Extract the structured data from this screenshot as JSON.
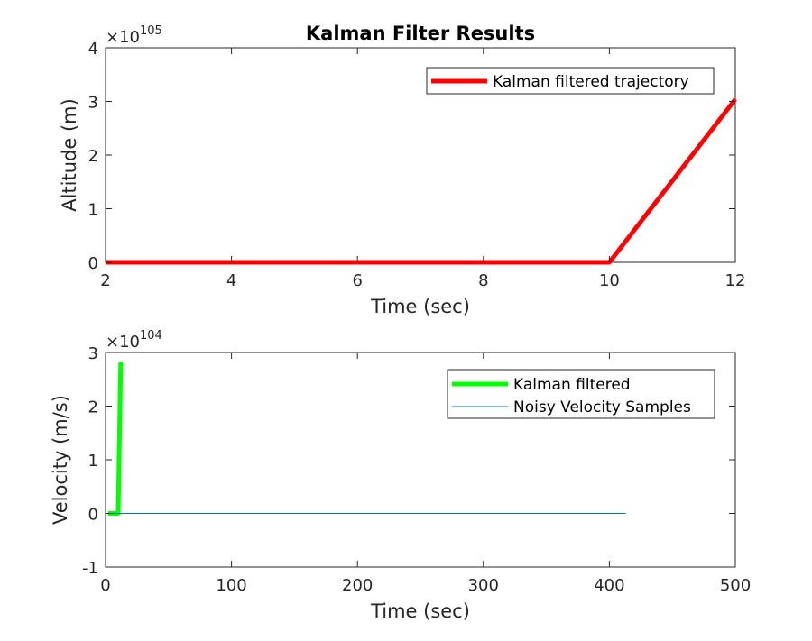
{
  "chart_data": [
    {
      "type": "line",
      "title": "Kalman Filter Results",
      "xlabel": "Time (sec)",
      "ylabel": "Altitude (m)",
      "xlim": [
        2,
        12
      ],
      "ylim": [
        0,
        4
      ],
      "xticks": [
        "2",
        "4",
        "6",
        "8",
        "10",
        "12"
      ],
      "yticks": [
        "0",
        "1",
        "2",
        "3",
        "4"
      ],
      "y_multiplier": {
        "base": "×10",
        "exponent": "105"
      },
      "grid": false,
      "legend_position": "top-right",
      "series": [
        {
          "name": "Kalman filtered trajectory",
          "color": "#ff0000",
          "x": [
            2,
            3,
            4,
            5,
            6,
            7,
            8,
            9,
            10,
            11,
            12
          ],
          "y": [
            0,
            0,
            0,
            0,
            0,
            0,
            0,
            0,
            0,
            1.52,
            3.04
          ]
        }
      ]
    },
    {
      "type": "line",
      "title": "",
      "xlabel": "Time (sec)",
      "ylabel": "Velocity (m/s)",
      "xlim": [
        0,
        500
      ],
      "ylim": [
        -1,
        3
      ],
      "xticks": [
        "0",
        "100",
        "200",
        "300",
        "400",
        "500"
      ],
      "yticks": [
        "-1",
        "0",
        "1",
        "2",
        "3"
      ],
      "y_multiplier": {
        "base": "×10",
        "exponent": "104"
      },
      "grid": false,
      "legend_position": "top-right",
      "series": [
        {
          "name": "Kalman filtered",
          "color": "#00ff00",
          "x": [
            2,
            10,
            12
          ],
          "y": [
            0,
            0,
            2.82
          ]
        },
        {
          "name": "Noisy Velocity Samples",
          "color": "#0072bd",
          "x": [
            0,
            413
          ],
          "y": [
            0,
            0
          ]
        }
      ]
    }
  ]
}
